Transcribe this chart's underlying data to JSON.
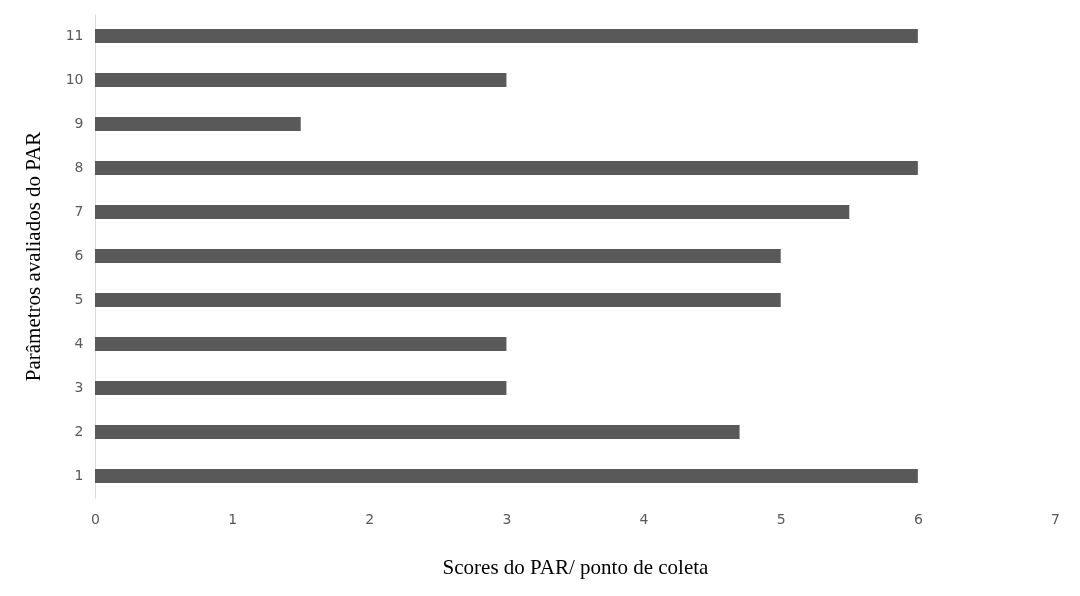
{
  "chart_data": {
    "type": "bar",
    "orientation": "horizontal",
    "categories": [
      "11",
      "10",
      "9",
      "8",
      "7",
      "6",
      "5",
      "4",
      "3",
      "2",
      "1"
    ],
    "values": [
      6,
      3,
      1.5,
      6,
      5.5,
      5,
      5,
      3,
      3,
      4.7,
      6
    ],
    "color": "#595959",
    "xlim": [
      0,
      7
    ],
    "xticks": [
      0,
      1,
      2,
      3,
      4,
      5,
      6,
      7
    ],
    "xlabel": "Scores do PAR/ ponto de coleta",
    "ylabel": "Parâmetros avaliados do PAR"
  }
}
